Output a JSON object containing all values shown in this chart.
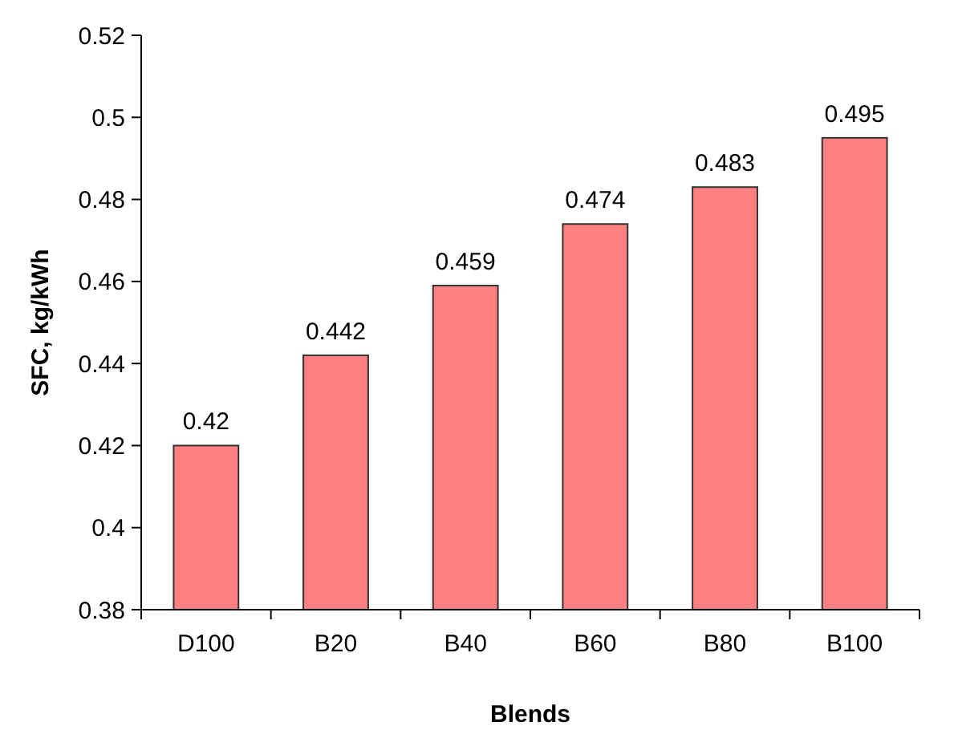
{
  "chart_data": {
    "type": "bar",
    "xlabel": "Blends",
    "ylabel": "SFC, kg/kWh",
    "categories": [
      "D100",
      "B20",
      "B40",
      "B60",
      "B80",
      "B100"
    ],
    "values": [
      0.42,
      0.442,
      0.459,
      0.474,
      0.483,
      0.495
    ],
    "color": "#ff8080",
    "ylim": [
      0.38,
      0.52
    ],
    "yticks": [
      0.38,
      0.4,
      0.42,
      0.44,
      0.46,
      0.48,
      0.5,
      0.52
    ],
    "data_labels": true
  }
}
